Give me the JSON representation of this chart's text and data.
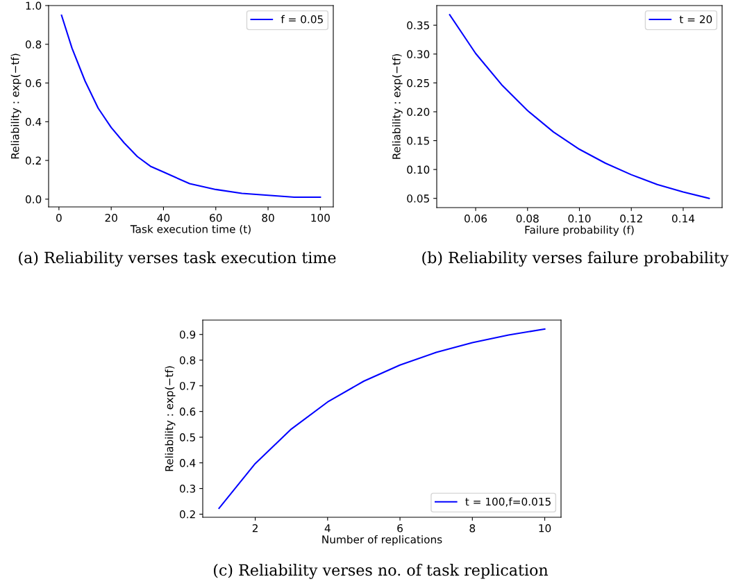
{
  "chart_data": [
    {
      "type": "line",
      "xlabel": "Task execution time (t)",
      "ylabel": "Reliability : exp(−tf)",
      "annotations": [
        "(a) Reliability verses task execution time"
      ],
      "x": [
        1,
        5,
        10,
        15,
        20,
        25,
        30,
        35,
        40,
        50,
        60,
        70,
        80,
        90,
        100
      ],
      "series": [
        {
          "name": "f = 0.05",
          "color": "#0000ff",
          "values": [
            0.95,
            0.78,
            0.61,
            0.47,
            0.37,
            0.29,
            0.22,
            0.17,
            0.14,
            0.08,
            0.05,
            0.03,
            0.02,
            0.01,
            0.01
          ]
        }
      ],
      "xlim": [
        -3.95,
        104.95
      ],
      "ylim": [
        -0.04,
        1.0
      ],
      "xticks": [
        0,
        20,
        40,
        60,
        80,
        100
      ],
      "yticks": [
        {
          "value": 0,
          "label": "0.0"
        },
        0.2,
        0.4,
        0.6,
        0.8,
        {
          "value": 1,
          "label": "1.0"
        }
      ],
      "legend": "top right",
      "grid": false
    },
    {
      "type": "line",
      "xlabel": "Failure probability (f)",
      "ylabel": "Reliability : exp(−tf)",
      "annotations": [
        "(b) Reliability verses failure probability"
      ],
      "x": [
        0.05,
        0.06,
        0.07,
        0.08,
        0.09,
        0.1,
        0.11,
        0.12,
        0.13,
        0.14,
        0.15
      ],
      "series": [
        {
          "name": "t = 20",
          "color": "#0000ff",
          "values": [
            0.368,
            0.301,
            0.247,
            0.202,
            0.165,
            0.135,
            0.111,
            0.091,
            0.074,
            0.061,
            0.05
          ]
        }
      ],
      "xlim": [
        0.045,
        0.155
      ],
      "ylim": [
        0.034,
        0.384
      ],
      "xticks": [
        0.06,
        0.08,
        {
          "value": 0.1,
          "label": "0.10"
        },
        0.12,
        0.14
      ],
      "yticks": [
        0.05,
        {
          "value": 0.1,
          "label": "0.10"
        },
        0.15,
        {
          "value": 0.2,
          "label": "0.20"
        },
        0.25,
        {
          "value": 0.3,
          "label": "0.30"
        },
        0.35
      ],
      "legend": "top right",
      "grid": false
    },
    {
      "type": "line",
      "xlabel": "Number of replications",
      "ylabel": "Reliability : exp(−tf)",
      "annotations": [
        "(c) Reliability verses no. of task replication"
      ],
      "x": [
        1,
        2,
        3,
        4,
        5,
        6,
        7,
        8,
        9,
        10
      ],
      "series": [
        {
          "name": "t = 100,f=0.015",
          "color": "#0000ff",
          "values": [
            0.223,
            0.397,
            0.532,
            0.637,
            0.718,
            0.781,
            0.83,
            0.868,
            0.898,
            0.921
          ]
        }
      ],
      "xlim": [
        0.55,
        10.45
      ],
      "ylim": [
        0.188,
        0.956
      ],
      "xticks": [
        2,
        4,
        6,
        8,
        10
      ],
      "yticks": [
        0.2,
        0.3,
        0.4,
        0.5,
        0.6,
        0.7,
        0.8,
        0.9
      ],
      "legend": "bottom right",
      "grid": false
    }
  ]
}
